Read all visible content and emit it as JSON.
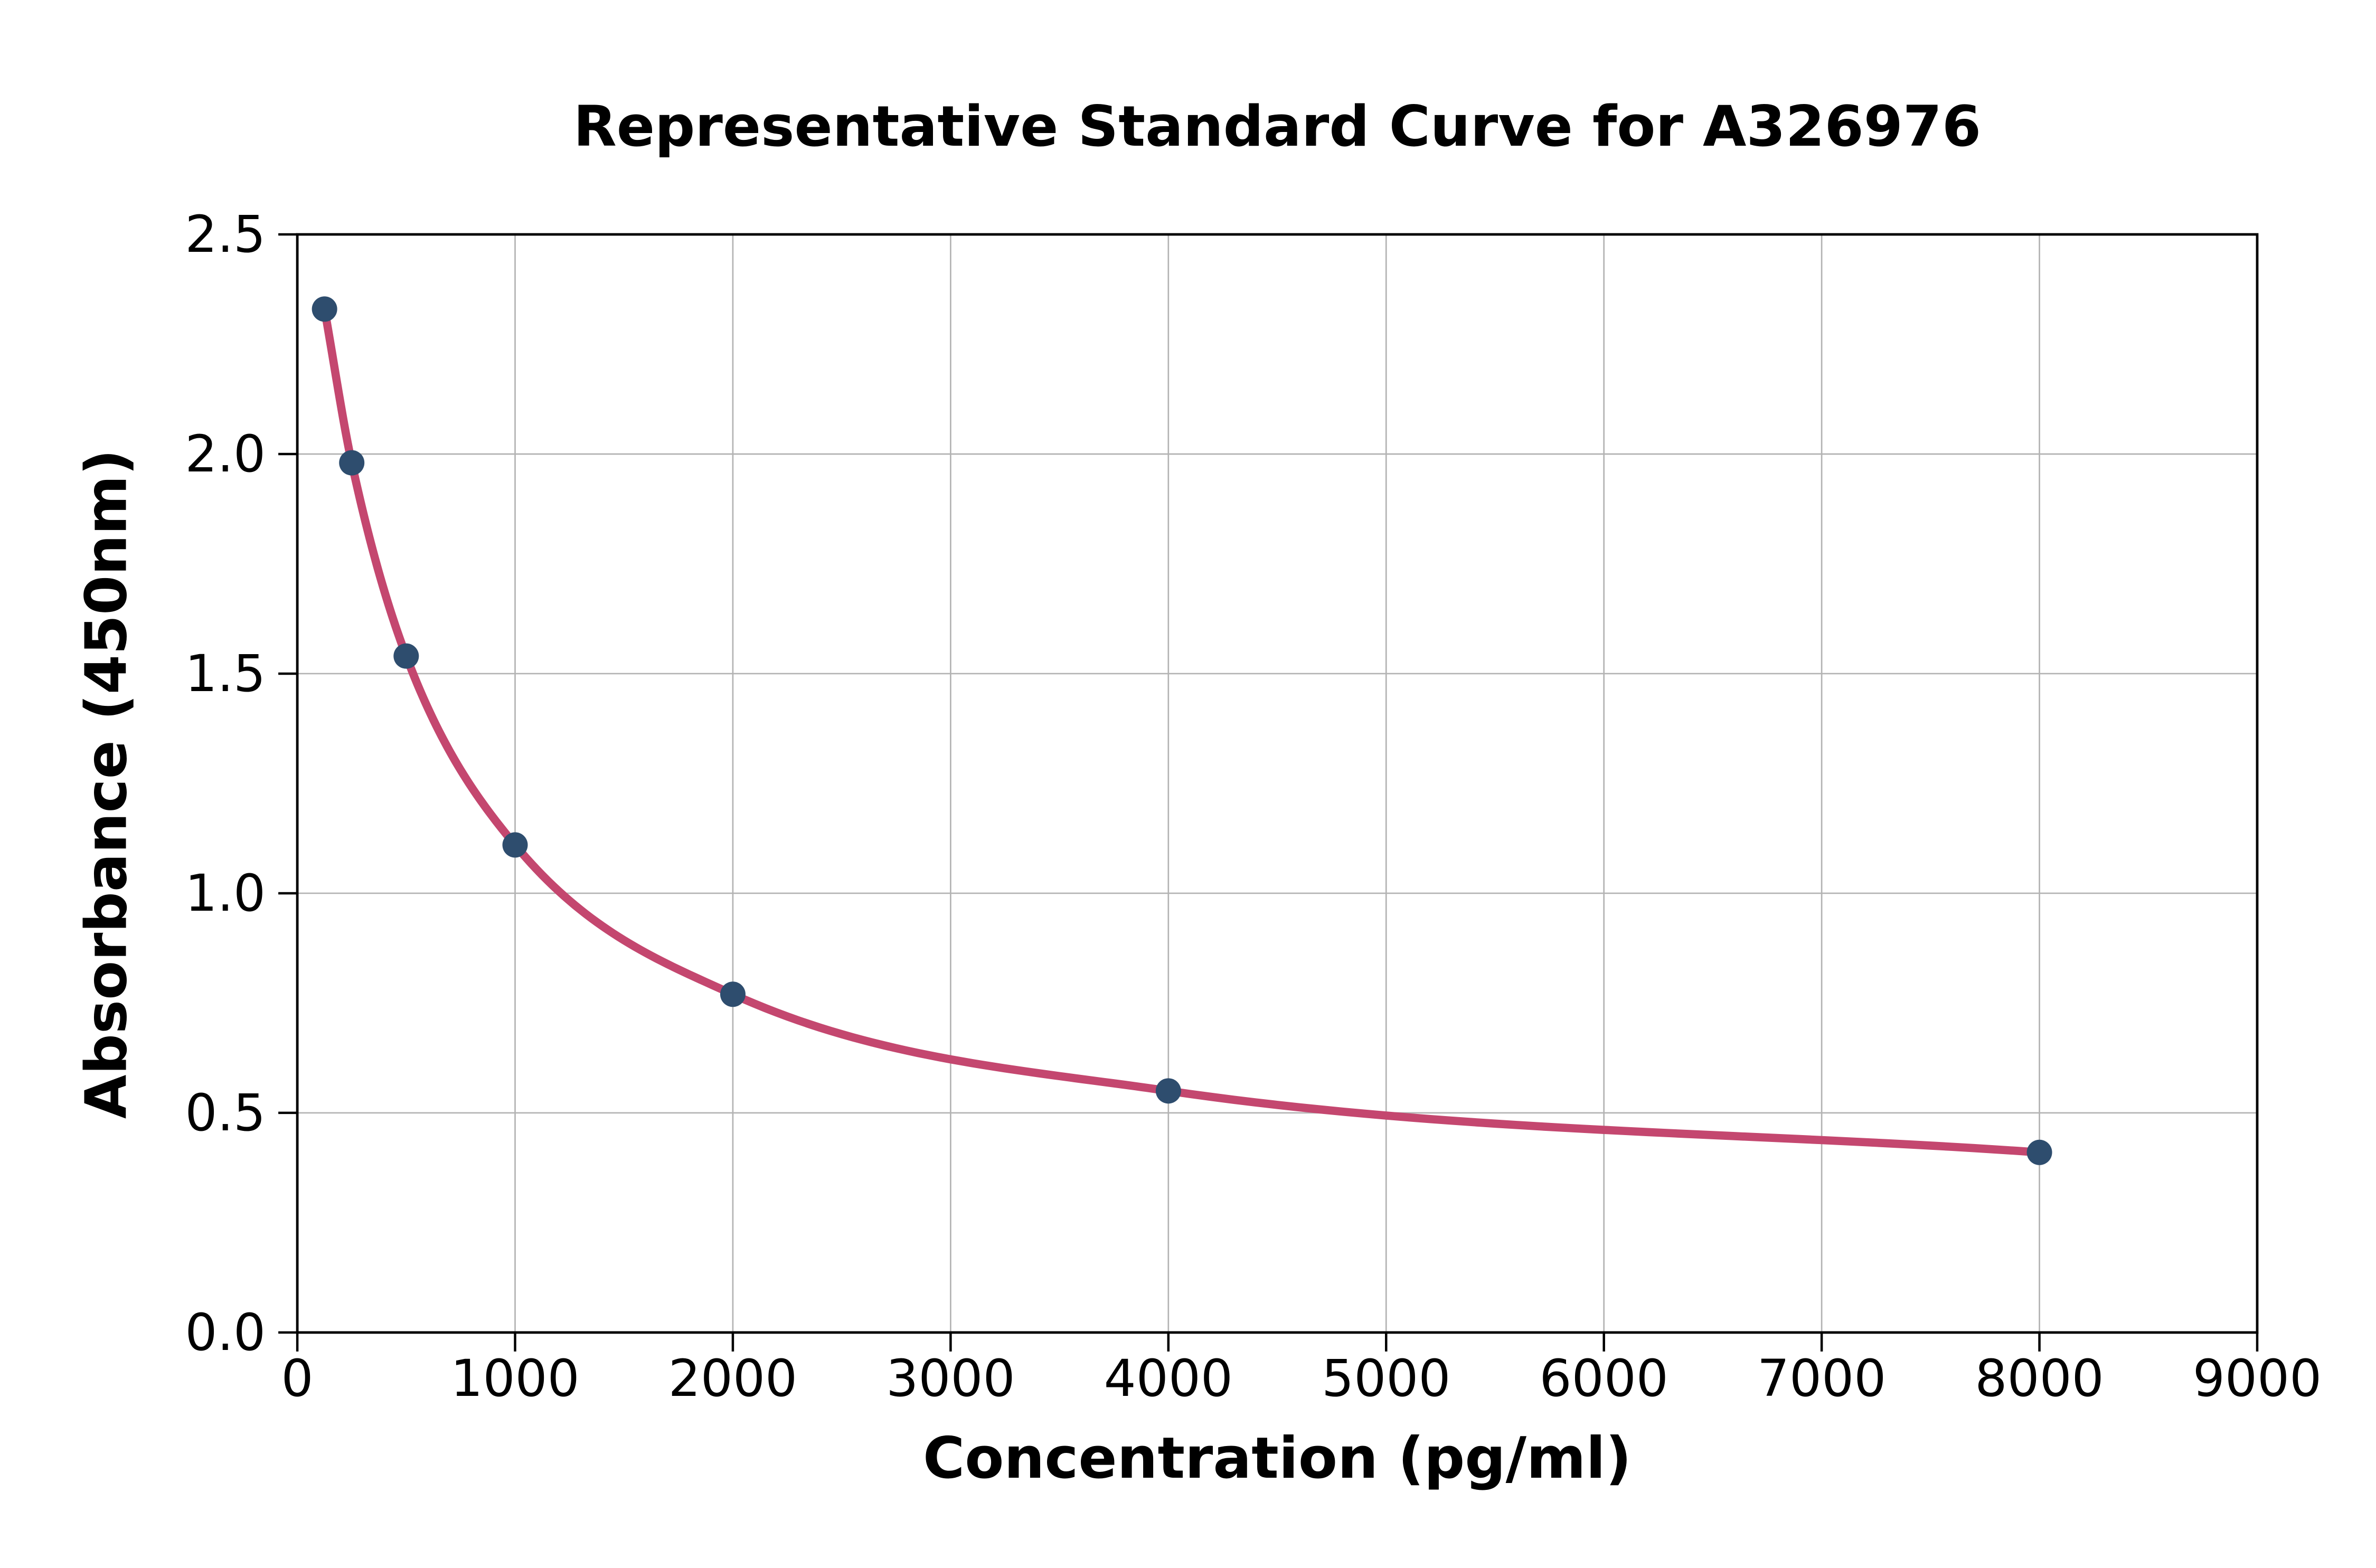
{
  "chart_data": {
    "type": "scatter",
    "title": "Representative Standard Curve for A326976",
    "xlabel": "Concentration (pg/ml)",
    "ylabel": "Absorbance (450nm)",
    "series": [
      {
        "name": "standard-points",
        "x": [
          125,
          250,
          500,
          1000,
          2000,
          4000,
          8000
        ],
        "y": [
          2.33,
          1.98,
          1.54,
          1.11,
          0.77,
          0.55,
          0.41
        ]
      }
    ],
    "curve": {
      "description": "smooth 4PL-style fit passing through all standard points",
      "x_start": 125,
      "x_end": 8000
    },
    "xlim": [
      0,
      9000
    ],
    "ylim": [
      0.0,
      2.5
    ],
    "xticks": [
      0,
      1000,
      2000,
      3000,
      4000,
      5000,
      6000,
      7000,
      8000,
      9000
    ],
    "xtick_labels": [
      "0",
      "1000",
      "2000",
      "3000",
      "4000",
      "5000",
      "6000",
      "7000",
      "8000",
      "9000"
    ],
    "yticks": [
      0.0,
      0.5,
      1.0,
      1.5,
      2.0,
      2.5
    ],
    "ytick_labels": [
      "0.0",
      "0.5",
      "1.0",
      "1.5",
      "2.0",
      "2.5"
    ],
    "grid": true,
    "legend": "none",
    "colors": {
      "curve": "#c4476f",
      "points": "#2e4d6e",
      "grid": "#b3b3b3",
      "axis": "#000000",
      "background": "#ffffff",
      "text": "#000000"
    }
  }
}
